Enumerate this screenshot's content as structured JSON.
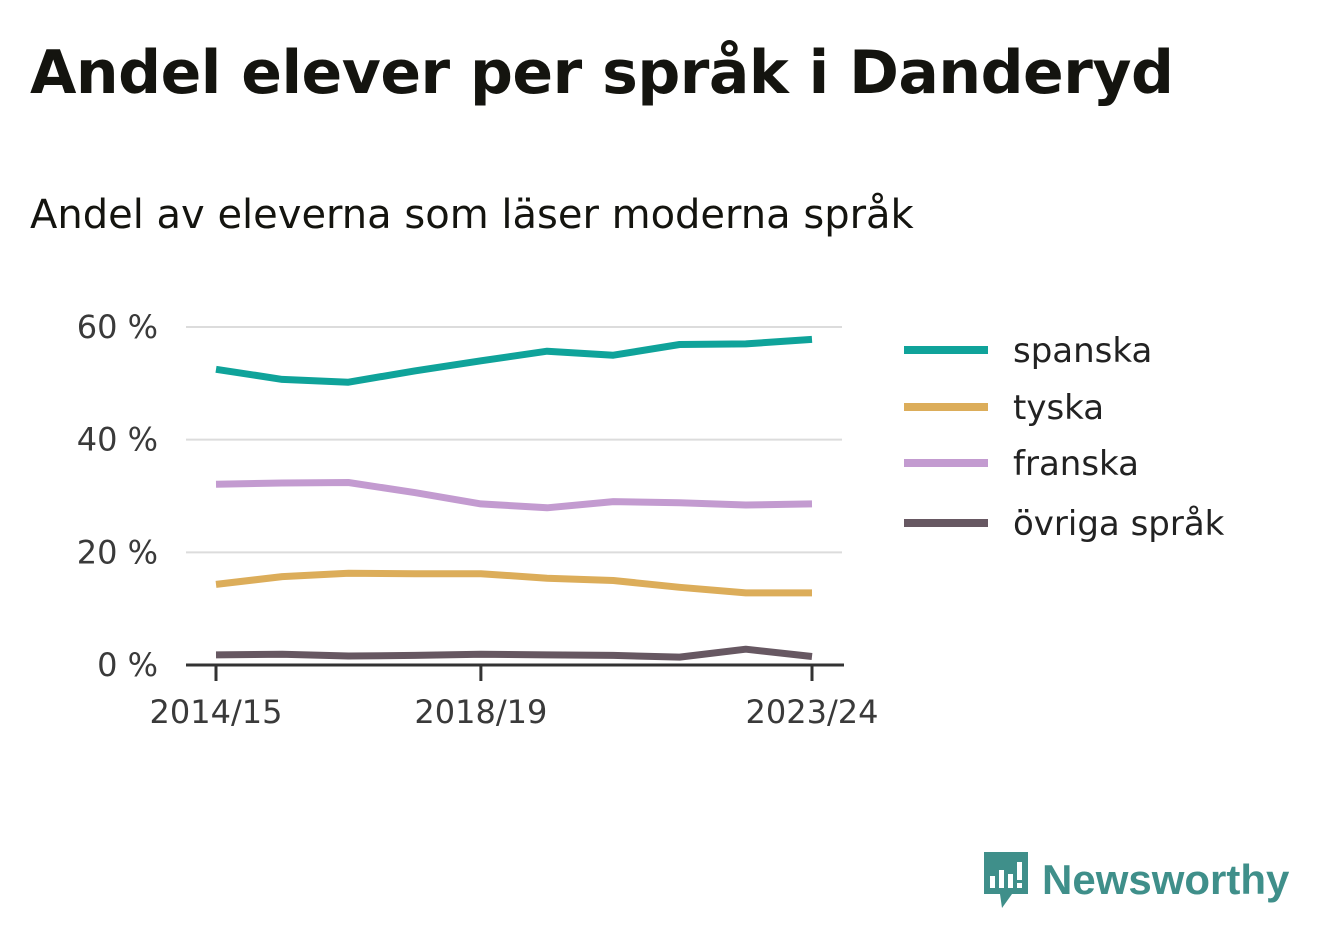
{
  "title": "Andel elever per språk i Danderyd",
  "subtitle": "Andel av eleverna som läser moderna språk",
  "brand": {
    "name": "Newsworthy",
    "color": "#3f8f8a",
    "icon": "newsworthy-logo-icon"
  },
  "chart_data": {
    "type": "line",
    "title": "Andel elever per språk i Danderyd",
    "subtitle": "Andel av eleverna som läser moderna språk",
    "x": [
      "2014/15",
      "2015/16",
      "2016/17",
      "2017/18",
      "2018/19",
      "2019/20",
      "2020/21",
      "2021/22",
      "2022/23",
      "2023/24"
    ],
    "x_tick_labels": [
      "2014/15",
      "2018/19",
      "2023/24"
    ],
    "y_ticks": [
      0,
      20,
      40,
      60
    ],
    "y_tick_labels": [
      "0 %",
      "20 %",
      "40 %",
      "60 %"
    ],
    "ylim": [
      0,
      60
    ],
    "grid": true,
    "legend": "right",
    "series": [
      {
        "name": "spanska",
        "color": "#0fa39a",
        "values": [
          52.5,
          50.7,
          50.2,
          52.2,
          54.0,
          55.7,
          55.0,
          56.9,
          57.0,
          57.8
        ]
      },
      {
        "name": "tyska",
        "color": "#dcad5a",
        "values": [
          14.3,
          15.7,
          16.3,
          16.2,
          16.2,
          15.4,
          15.0,
          13.8,
          12.8,
          12.8
        ]
      },
      {
        "name": "franska",
        "color": "#c39bd0",
        "values": [
          32.1,
          32.3,
          32.4,
          30.6,
          28.6,
          27.9,
          29.0,
          28.8,
          28.4,
          28.6
        ]
      },
      {
        "name": "övriga språk",
        "color": "#675862",
        "values": [
          1.8,
          1.9,
          1.6,
          1.7,
          1.9,
          1.8,
          1.7,
          1.4,
          2.8,
          1.5
        ]
      }
    ]
  }
}
